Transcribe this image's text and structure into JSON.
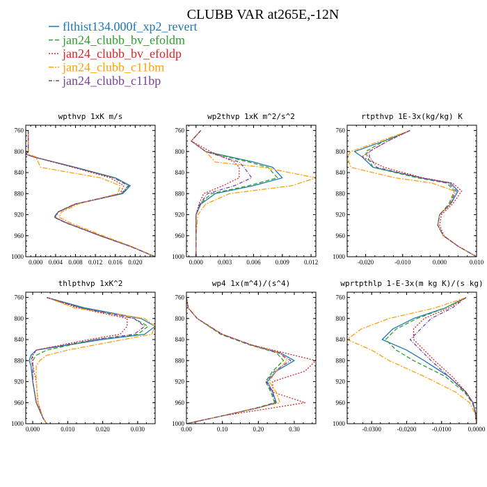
{
  "title": "CLUBB VAR at265E,-12N",
  "legend": [
    {
      "name": "flthist134.000f_xp2_revert",
      "color": "#1f77b4",
      "dash": ""
    },
    {
      "name": "jan24_clubb_bv_efoldm",
      "color": "#2ca02c",
      "dash": "6,3"
    },
    {
      "name": "jan24_clubb_bv_efoldp",
      "color": "#d62728",
      "dash": "2,2"
    },
    {
      "name": "jan24_clubb_c11bm",
      "color": "#ff9f0f",
      "dash": "7,2,2,2"
    },
    {
      "name": "jan24_clubb_c11bp",
      "color": "#7b3fa0",
      "dash": "5,2,1,2"
    }
  ],
  "chart_data": [
    {
      "type": "line",
      "title": "wpthvp  1xK m/s",
      "ylim": [
        1000,
        750
      ],
      "xlim": [
        -0.002,
        0.024
      ],
      "xticks": [
        0.0,
        0.004,
        0.008,
        0.012,
        0.016,
        0.02
      ],
      "xtick_labels": [
        "0.000",
        "0.004",
        "0.008",
        "0.012",
        "0.016",
        "0.020"
      ],
      "yticks": [
        760,
        800,
        840,
        880,
        920,
        960,
        1000
      ],
      "ytick_labels": [
        "760",
        "800",
        "840",
        "880",
        "920",
        "960",
        "1000"
      ],
      "y": [
        760,
        800,
        805,
        810,
        830,
        850,
        865,
        880,
        900,
        915,
        925,
        935,
        960,
        980,
        1000
      ],
      "series": [
        {
          "values": [
            -0.0015,
            -0.0015,
            -0.002,
            -0.0005,
            0.008,
            0.016,
            0.019,
            0.0175,
            0.008,
            0.0045,
            0.0038,
            0.006,
            0.013,
            0.019,
            0.024
          ]
        },
        {
          "values": [
            -0.0015,
            -0.0015,
            -0.002,
            -0.0005,
            0.0078,
            0.0158,
            0.0188,
            0.0173,
            0.0078,
            0.0044,
            0.0037,
            0.0059,
            0.0129,
            0.0189,
            0.024
          ]
        },
        {
          "values": [
            -0.0015,
            -0.0015,
            -0.002,
            -0.0005,
            0.0075,
            0.015,
            0.0177,
            0.017,
            0.008,
            0.0046,
            0.0039,
            0.0061,
            0.013,
            0.019,
            0.024
          ]
        },
        {
          "values": [
            -0.0015,
            -0.0015,
            -0.0015,
            0.0,
            0.001,
            0.013,
            0.017,
            0.0165,
            0.0085,
            0.0052,
            0.0047,
            0.0068,
            0.0135,
            0.0192,
            0.024
          ]
        },
        {
          "values": [
            -0.0015,
            -0.0015,
            -0.002,
            -0.0005,
            0.0079,
            0.0157,
            0.0186,
            0.0172,
            0.0079,
            0.0045,
            0.0038,
            0.006,
            0.0129,
            0.0189,
            0.024
          ]
        }
      ]
    },
    {
      "type": "line",
      "title": "wp2thvp  1xK m^2/s^2",
      "ylim": [
        1000,
        750
      ],
      "xlim": [
        -0.001,
        0.0125
      ],
      "xticks": [
        0.0,
        0.003,
        0.006,
        0.009,
        0.012
      ],
      "xtick_labels": [
        "0.000",
        "0.003",
        "0.006",
        "0.009",
        "0.012"
      ],
      "yticks": [
        760,
        800,
        840,
        880,
        920,
        960,
        1000
      ],
      "ytick_labels": [
        "760",
        "800",
        "840",
        "880",
        "920",
        "960",
        "1000"
      ],
      "y": [
        760,
        780,
        800,
        820,
        830,
        850,
        865,
        880,
        900,
        920,
        960,
        1000
      ],
      "series": [
        {
          "values": [
            0.0005,
            -0.0005,
            0.001,
            0.006,
            0.008,
            0.009,
            0.006,
            0.002,
            0.0005,
            0.0,
            0.0,
            0.0
          ]
        },
        {
          "values": [
            0.0005,
            -0.0005,
            0.001,
            0.0055,
            0.0075,
            0.0085,
            0.0055,
            0.0016,
            0.0004,
            0.0,
            0.0,
            0.0
          ]
        },
        {
          "values": [
            0.0005,
            -0.0005,
            0.0015,
            0.004,
            0.0045,
            0.0045,
            0.0028,
            0.0008,
            0.0003,
            0.0,
            0.0,
            0.0
          ]
        },
        {
          "values": [
            0.0005,
            -0.0005,
            0.001,
            0.002,
            0.007,
            0.0125,
            0.01,
            0.0035,
            0.001,
            0.0002,
            0.0,
            0.0
          ]
        },
        {
          "values": [
            0.0005,
            -0.0005,
            0.001,
            0.0045,
            0.005,
            0.0058,
            0.004,
            0.0012,
            0.0004,
            0.0,
            0.0,
            0.0
          ]
        }
      ]
    },
    {
      "type": "line",
      "title": "rtpthvp  1E-3x(kg/kg) K",
      "ylim": [
        1000,
        750
      ],
      "xlim": [
        -0.025,
        0.01
      ],
      "xticks": [
        -0.02,
        -0.01,
        0.0,
        0.01
      ],
      "xtick_labels": [
        "-0.020",
        "-0.010",
        "0.000",
        "0.010"
      ],
      "yticks": [
        760,
        800,
        840,
        880,
        920,
        960,
        1000
      ],
      "ytick_labels": [
        "760",
        "800",
        "840",
        "880",
        "920",
        "960",
        "1000"
      ],
      "y": [
        760,
        780,
        800,
        810,
        830,
        850,
        860,
        875,
        900,
        920,
        940,
        960,
        980,
        1000
      ],
      "series": [
        {
          "values": [
            -0.008,
            -0.015,
            -0.023,
            -0.021,
            -0.018,
            -0.005,
            0.003,
            0.005,
            0.003,
            0.0,
            -0.0005,
            0.001,
            0.005,
            0.01
          ]
        },
        {
          "values": [
            -0.008,
            -0.015,
            -0.02,
            -0.0195,
            -0.018,
            -0.006,
            0.002,
            0.004,
            0.0025,
            0.0,
            -0.0005,
            0.001,
            0.005,
            0.01
          ]
        },
        {
          "values": [
            -0.008,
            -0.014,
            -0.019,
            -0.021,
            -0.015,
            -0.0045,
            0.0035,
            0.006,
            0.0035,
            0.0005,
            0.0,
            0.0012,
            0.005,
            0.01
          ]
        },
        {
          "values": [
            -0.008,
            -0.016,
            -0.024,
            -0.025,
            -0.024,
            -0.012,
            -0.002,
            0.004,
            0.003,
            0.0,
            -0.0005,
            0.001,
            0.005,
            0.01
          ]
        },
        {
          "values": [
            -0.008,
            -0.014,
            -0.019,
            -0.019,
            -0.017,
            -0.005,
            0.0025,
            0.0045,
            0.0028,
            0.0,
            -0.0005,
            0.001,
            0.005,
            0.01
          ]
        }
      ]
    },
    {
      "type": "line",
      "title": "thlpthvp  1xK^2",
      "ylim": [
        1000,
        750
      ],
      "xlim": [
        -0.002,
        0.035
      ],
      "xticks": [
        0.0,
        0.01,
        0.02,
        0.03
      ],
      "xtick_labels": [
        "0.000",
        "0.010",
        "0.020",
        "0.030"
      ],
      "yticks": [
        760,
        800,
        840,
        880,
        920,
        960,
        1000
      ],
      "ytick_labels": [
        "760",
        "800",
        "840",
        "880",
        "920",
        "960",
        "1000"
      ],
      "y": [
        760,
        780,
        800,
        815,
        830,
        840,
        860,
        870,
        880,
        890,
        920,
        960,
        990,
        1000
      ],
      "series": [
        {
          "values": [
            0.004,
            0.015,
            0.031,
            0.035,
            0.032,
            0.02,
            0.001,
            -0.0005,
            -0.001,
            -0.0005,
            0.0,
            0.001,
            0.003,
            0.004
          ]
        },
        {
          "values": [
            0.004,
            0.014,
            0.029,
            0.033,
            0.03,
            0.018,
            0.004,
            0.001,
            0.0,
            0.0,
            0.0,
            0.001,
            0.003,
            0.004
          ]
        },
        {
          "values": [
            0.004,
            0.013,
            0.027,
            0.027,
            0.025,
            0.016,
            0.001,
            0.0,
            0.0,
            0.0,
            0.001,
            0.0015,
            0.003,
            0.004
          ]
        },
        {
          "values": [
            0.004,
            0.012,
            0.032,
            0.035,
            0.034,
            0.026,
            0.01,
            0.004,
            0.002,
            0.001,
            0.001,
            0.0015,
            0.003,
            0.004
          ]
        },
        {
          "values": [
            0.004,
            0.014,
            0.029,
            0.032,
            0.029,
            0.018,
            0.001,
            0.0,
            -0.0005,
            0.0,
            0.0,
            0.001,
            0.003,
            0.004
          ]
        }
      ]
    },
    {
      "type": "line",
      "title": "wp4  1x(m^4)/(s^4)",
      "ylim": [
        1000,
        750
      ],
      "xlim": [
        0.0,
        0.36
      ],
      "xticks": [
        0.0,
        0.1,
        0.2,
        0.3
      ],
      "xtick_labels": [
        "0.00",
        "0.10",
        "0.20",
        "0.30"
      ],
      "yticks": [
        760,
        800,
        840,
        880,
        920,
        960,
        1000
      ],
      "ytick_labels": [
        "760",
        "800",
        "840",
        "880",
        "920",
        "960",
        "1000"
      ],
      "y": [
        760,
        780,
        800,
        830,
        850,
        865,
        880,
        900,
        920,
        940,
        960,
        970,
        985,
        1000
      ],
      "series": [
        {
          "values": [
            0.0,
            0.005,
            0.03,
            0.1,
            0.18,
            0.26,
            0.3,
            0.25,
            0.225,
            0.24,
            0.25,
            0.2,
            0.1,
            0.0
          ]
        },
        {
          "values": [
            0.0,
            0.005,
            0.03,
            0.095,
            0.175,
            0.25,
            0.27,
            0.24,
            0.22,
            0.235,
            0.245,
            0.195,
            0.1,
            0.0
          ]
        },
        {
          "values": [
            0.0,
            0.005,
            0.03,
            0.1,
            0.18,
            0.27,
            0.36,
            0.33,
            0.24,
            0.24,
            0.33,
            0.24,
            0.1,
            0.0
          ]
        },
        {
          "values": [
            0.0,
            0.005,
            0.03,
            0.1,
            0.18,
            0.26,
            0.28,
            0.25,
            0.23,
            0.25,
            0.26,
            0.2,
            0.1,
            0.0
          ]
        },
        {
          "values": [
            0.0,
            0.005,
            0.03,
            0.098,
            0.178,
            0.255,
            0.29,
            0.245,
            0.222,
            0.238,
            0.248,
            0.198,
            0.1,
            0.0
          ]
        }
      ]
    },
    {
      "type": "line",
      "title": "wprtpthlp  1-E-3x(m kg K)/(s kg)",
      "ylim": [
        1000,
        750
      ],
      "xlim": [
        -0.037,
        0.0
      ],
      "xticks": [
        -0.03,
        -0.02,
        -0.01,
        0.0
      ],
      "xtick_labels": [
        "-0.0300",
        "-0.0200",
        "-0.0100",
        "0.0000"
      ],
      "yticks": [
        760,
        800,
        840,
        880,
        920,
        960,
        1000
      ],
      "ytick_labels": [
        "760",
        "800",
        "840",
        "880",
        "920",
        "960",
        "1000"
      ],
      "y": [
        760,
        780,
        800,
        820,
        840,
        860,
        880,
        910,
        940,
        960,
        980,
        1000
      ],
      "series": [
        {
          "values": [
            -0.003,
            -0.009,
            -0.018,
            -0.024,
            -0.027,
            -0.02,
            -0.015,
            -0.008,
            -0.003,
            -0.001,
            -0.0003,
            0.0
          ]
        },
        {
          "values": [
            -0.003,
            -0.009,
            -0.017,
            -0.023,
            -0.026,
            -0.023,
            -0.018,
            -0.009,
            -0.0035,
            -0.0012,
            -0.0003,
            0.0
          ]
        },
        {
          "values": [
            -0.003,
            -0.008,
            -0.015,
            -0.018,
            -0.018,
            -0.015,
            -0.012,
            -0.007,
            -0.003,
            -0.001,
            -0.0003,
            0.0
          ]
        },
        {
          "values": [
            -0.003,
            -0.012,
            -0.025,
            -0.033,
            -0.037,
            -0.03,
            -0.025,
            -0.015,
            -0.006,
            -0.002,
            -0.0005,
            0.0
          ]
        },
        {
          "values": [
            -0.003,
            -0.007,
            -0.013,
            -0.016,
            -0.019,
            -0.016,
            -0.013,
            -0.008,
            -0.0032,
            -0.0011,
            -0.0003,
            0.0
          ]
        }
      ]
    }
  ]
}
